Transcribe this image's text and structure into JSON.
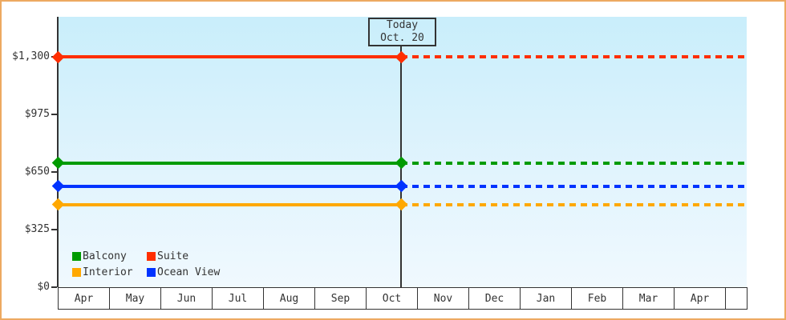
{
  "chart_data": {
    "type": "line",
    "title": "",
    "x_categories": [
      "Apr",
      "May",
      "Jun",
      "Jul",
      "Aug",
      "Sep",
      "Oct",
      "Nov",
      "Dec",
      "Jan",
      "Feb",
      "Mar",
      "Apr"
    ],
    "y_axis": {
      "min": 0,
      "max": 1300,
      "ticks": [
        {
          "label": "$1,300",
          "value": 1300
        },
        {
          "label": "$975",
          "value": 975
        },
        {
          "label": "$650",
          "value": 650
        },
        {
          "label": "$325",
          "value": 325
        },
        {
          "label": "$0",
          "value": 0
        }
      ]
    },
    "today": {
      "line1": "Today",
      "line2": "Oct. 20",
      "month_index": 6,
      "day_fraction": 0.645
    },
    "series": [
      {
        "name": "Suite",
        "color": "#ff2e00",
        "value": 1300
      },
      {
        "name": "Balcony",
        "color": "#009b00",
        "value": 700
      },
      {
        "name": "Ocean View",
        "color": "#0033ff",
        "value": 570
      },
      {
        "name": "Interior",
        "color": "#ffa800",
        "value": 465
      }
    ],
    "line_style": "flat price line: solid from left axis to today marker, dotted projection from today to right edge, diamond markers at axis and at today",
    "legend": {
      "position": "bottom-left-inside",
      "rows": [
        [
          "Balcony",
          "Suite"
        ],
        [
          "Interior",
          "Ocean View"
        ]
      ]
    },
    "colors": {
      "plot_gradient_top": "#c9eefb",
      "plot_gradient_bottom": "#f0f9fe",
      "axis": "#333333",
      "outer_border": "#eda961",
      "text": "#333333"
    }
  }
}
